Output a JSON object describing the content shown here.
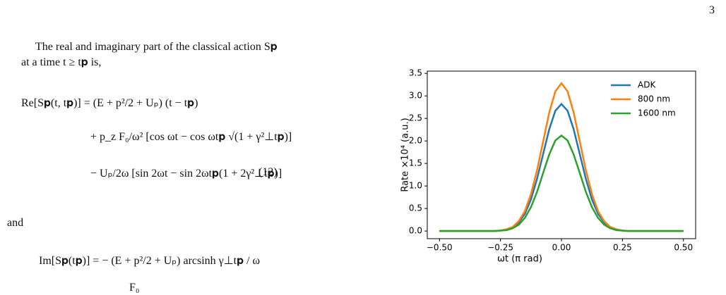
{
  "page_number": "3",
  "paragraph": "The real and imaginary part of the classical action S𝐩 at a time t ≥ t𝐩 is,",
  "equation_12": {
    "lines": [
      "Re[S𝐩(t, t𝐩)] = (E + p²/2 + Uₚ) (t − t𝐩)",
      "+ p_z F₀/ω² [cos ωt − cos ωt𝐩 √(1 + γ²⊥t𝐩)]",
      "− Uₚ/2ω [sin 2ωt − sin 2ωt𝐩(1 + 2γ²⊥t𝐩)]"
    ],
    "number": "(12)"
  },
  "connector": "and",
  "equation_13": {
    "lines": [
      "Im[S𝐩(t𝐩)] = − (E + p²/2 + Uₚ) arcsinh γ⊥t𝐩 / ω",
      "F₀"
    ]
  },
  "chart_data": {
    "type": "line",
    "x_label": "ωt (π rad)",
    "y_label": "Rate ×10⁴ (a.u.)",
    "x": [
      -0.5,
      -0.3,
      -0.275,
      -0.25,
      -0.225,
      -0.2,
      -0.175,
      -0.15,
      -0.125,
      -0.1,
      -0.075,
      -0.05,
      -0.025,
      0,
      0.025,
      0.05,
      0.075,
      0.1,
      0.125,
      0.15,
      0.175,
      0.2,
      0.225,
      0.25,
      0.275,
      0.3,
      0.5
    ],
    "series": [
      {
        "name": "ADK",
        "color": "#1f77b4",
        "values": [
          0,
          0,
          0,
          0.01,
          0.03,
          0.08,
          0.19,
          0.38,
          0.7,
          1.16,
          1.71,
          2.26,
          2.67,
          2.82,
          2.67,
          2.26,
          1.71,
          1.16,
          0.7,
          0.38,
          0.19,
          0.08,
          0.03,
          0.01,
          0,
          0,
          0
        ]
      },
      {
        "name": "800 nm",
        "color": "#ff7f0e",
        "values": [
          0,
          0,
          0,
          0.01,
          0.04,
          0.09,
          0.22,
          0.44,
          0.82,
          1.35,
          1.99,
          2.63,
          3.1,
          3.28,
          3.1,
          2.63,
          1.99,
          1.35,
          0.82,
          0.44,
          0.22,
          0.09,
          0.04,
          0.01,
          0,
          0,
          0
        ]
      },
      {
        "name": "1600 nm",
        "color": "#2ca02c",
        "values": [
          0,
          0,
          0,
          0.01,
          0.02,
          0.06,
          0.14,
          0.29,
          0.53,
          0.87,
          1.29,
          1.7,
          2.01,
          2.12,
          2.01,
          1.7,
          1.29,
          0.87,
          0.53,
          0.29,
          0.14,
          0.06,
          0.02,
          0.01,
          0,
          0,
          0
        ]
      }
    ],
    "xlim": [
      -0.55,
      0.55
    ],
    "ylim": [
      -0.17,
      3.55
    ],
    "xticks": [
      {
        "value": -0.5,
        "label": "−0.50"
      },
      {
        "value": -0.25,
        "label": "−0.25"
      },
      {
        "value": 0,
        "label": "0.00"
      },
      {
        "value": 0.25,
        "label": "0.25"
      },
      {
        "value": 0.5,
        "label": "0.50"
      }
    ],
    "yticks": [
      {
        "value": 0,
        "label": "0.0"
      },
      0.5,
      {
        "value": 1,
        "label": "1.0"
      },
      1.5,
      {
        "value": 2,
        "label": "2.0"
      },
      2.5,
      {
        "value": 3,
        "label": "3.0"
      },
      3.5
    ],
    "grid": false,
    "legend": "upper right"
  }
}
